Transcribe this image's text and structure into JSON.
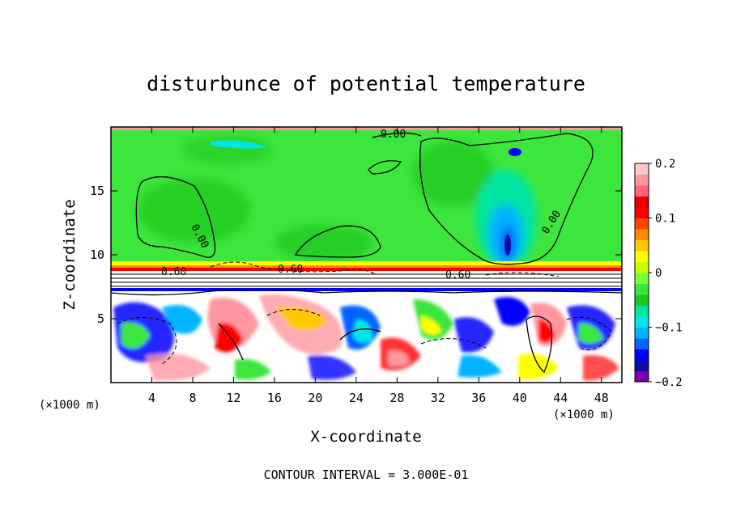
{
  "chart_data": {
    "type": "heatmap",
    "title": "disturbunce of potential temperature",
    "xlabel": "X-coordinate",
    "ylabel": "Z-coordinate",
    "xunit_left": "(×1000 m)",
    "xunit_right": "(×1000 m)",
    "xlim": [
      0,
      50
    ],
    "ylim": [
      0,
      20
    ],
    "xticks": [
      "4",
      "8",
      "12",
      "16",
      "20",
      "24",
      "28",
      "32",
      "36",
      "40",
      "44",
      "48"
    ],
    "xtick_values": [
      4,
      8,
      12,
      16,
      20,
      24,
      28,
      32,
      36,
      40,
      44,
      48
    ],
    "yticks": [
      "5",
      "10",
      "15"
    ],
    "ytick_values": [
      5,
      10,
      15
    ],
    "colorbar": {
      "min": -0.2,
      "max": 0.2,
      "tick_labels": [
        "0.2",
        "0.1",
        "0",
        "−0.1",
        "−0.2"
      ],
      "tick_values": [
        0.2,
        0.1,
        0,
        -0.1,
        -0.2
      ],
      "colors": [
        "#7b00a8",
        "#0d0d9f",
        "#0000ff",
        "#0064ff",
        "#00b4ff",
        "#00e6e6",
        "#00e6a0",
        "#1ec81e",
        "#3ce63c",
        "#78ff3c",
        "#c8ff00",
        "#ffff00",
        "#ffc800",
        "#ff8c00",
        "#ff4600",
        "#ff0000",
        "#e60000",
        "#ff6478",
        "#ff96a0",
        "#ffc8c8"
      ]
    },
    "contour_labels": [
      "0.00",
      "0.00",
      "0.00",
      "0.60",
      "0.60",
      "0.60"
    ],
    "footer": "CONTOUR INTERVAL = 3.000E-01"
  }
}
